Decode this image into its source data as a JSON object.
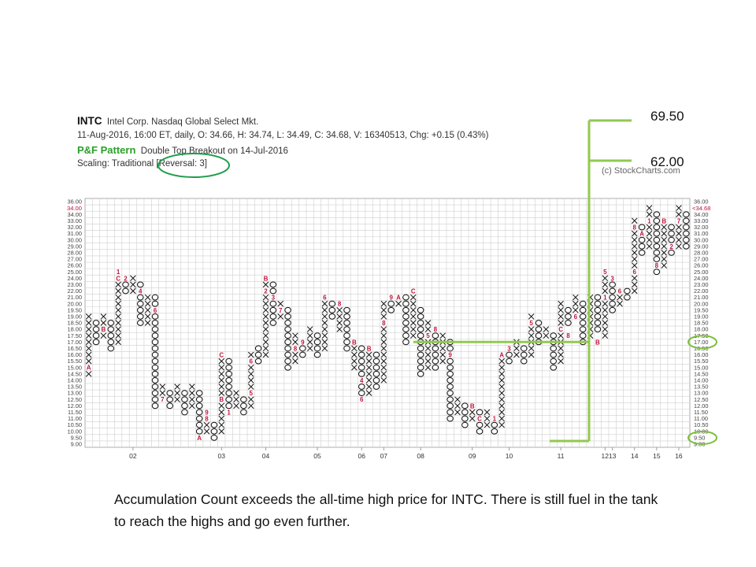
{
  "header": {
    "symbol": "INTC",
    "company": "Intel Corp.  Nasdaq Global Select Mkt.",
    "quote": "11-Aug-2016, 16:00 ET, daily, O: 34.66, H: 34.74, L: 34.49, C: 34.68, V: 16340513, Chg: +0.15 (0.43%)",
    "pattern_label": "P&F Pattern",
    "pattern_text": "Double Top Breakout on 14-Jul-2016",
    "scaling_prefix": "Scaling: Traditional ",
    "scaling_highlight": "[Reversal: 3]",
    "copyright": "(c) StockCharts.com"
  },
  "targets": {
    "upper": "69.50",
    "lower": "62.00"
  },
  "caption": "Accumulation Count exceeds the all-time high price for INTC. There is still fuel in the tank to reach the highs and go even further.",
  "colors": {
    "annotation_green": "#92c94f",
    "circle_green": "#1e9e4a",
    "x_color": "#111111",
    "o_color": "#111111",
    "month_marker": "#c0143c",
    "grid": "#cfcfcf"
  },
  "chart_data": {
    "type": "point-and-figure",
    "symbol": "INTC",
    "box_levels": [
      36.0,
      35.0,
      34.0,
      33.0,
      32.0,
      31.0,
      30.0,
      29.0,
      28.0,
      27.0,
      26.0,
      25.0,
      24.0,
      23.0,
      22.0,
      21.0,
      20.0,
      19.5,
      19.0,
      18.5,
      18.0,
      17.5,
      17.0,
      16.5,
      16.0,
      15.5,
      15.0,
      14.5,
      14.0,
      13.5,
      13.0,
      12.5,
      12.0,
      11.5,
      11.0,
      10.5,
      10.0,
      9.5,
      9.0
    ],
    "y_tick_labels": [
      "36.00",
      "35.00",
      "34.00",
      "33.00",
      "32.00",
      "31.00",
      "30.00",
      "29.00",
      "28.00",
      "27.00",
      "26.00",
      "25.00",
      "24.00",
      "23.00",
      "22.00",
      "21.00",
      "20.00",
      "19.50",
      "19.00",
      "18.50",
      "18.00",
      "17.50",
      "17.00",
      "16.50",
      "16.00",
      "15.50",
      "15.00",
      "14.50",
      "14.00",
      "13.50",
      "13.00",
      "12.50",
      "12.00",
      "11.50",
      "11.00",
      "10.50",
      "10.00",
      "9.50",
      "9.00"
    ],
    "x_tick_labels": [
      {
        "label": "02",
        "col": 6
      },
      {
        "label": "03",
        "col": 18
      },
      {
        "label": "04",
        "col": 24
      },
      {
        "label": "05",
        "col": 31
      },
      {
        "label": "06",
        "col": 37
      },
      {
        "label": "07",
        "col": 40
      },
      {
        "label": "08",
        "col": 45
      },
      {
        "label": "09",
        "col": 52
      },
      {
        "label": "10",
        "col": 57
      },
      {
        "label": "11",
        "col": 64
      },
      {
        "label": "12",
        "col": 70
      },
      {
        "label": "13",
        "col": 71
      },
      {
        "label": "14",
        "col": 74
      },
      {
        "label": "15",
        "col": 77
      },
      {
        "label": "16",
        "col": 80
      }
    ],
    "current_price": 34.68,
    "current_price_label": "<34.68",
    "current_price_left_label": "34.00",
    "circled_levels": [
      17.0,
      9.5
    ],
    "circled_labels": [
      "17.00",
      "9.50"
    ],
    "accumulation_row": 17.0,
    "columns": [
      {
        "t": "X",
        "lo": 14.5,
        "hi": 19.0
      },
      {
        "t": "O",
        "lo": 17.0,
        "hi": 18.5
      },
      {
        "t": "X",
        "lo": 17.5,
        "hi": 19.0
      },
      {
        "t": "O",
        "lo": 16.5,
        "hi": 18.5
      },
      {
        "t": "X",
        "lo": 17.0,
        "hi": 25.0
      },
      {
        "t": "O",
        "lo": 22.0,
        "hi": 24.0
      },
      {
        "t": "X",
        "lo": 22.0,
        "hi": 24.0
      },
      {
        "t": "O",
        "lo": 18.5,
        "hi": 23.0
      },
      {
        "t": "X",
        "lo": 18.5,
        "hi": 21.0
      },
      {
        "t": "O",
        "lo": 12.0,
        "hi": 21.0
      },
      {
        "t": "X",
        "lo": 12.5,
        "hi": 13.5
      },
      {
        "t": "O",
        "lo": 12.0,
        "hi": 13.0
      },
      {
        "t": "X",
        "lo": 12.5,
        "hi": 13.5
      },
      {
        "t": "O",
        "lo": 11.5,
        "hi": 13.0
      },
      {
        "t": "X",
        "lo": 12.0,
        "hi": 13.5
      },
      {
        "t": "O",
        "lo": 9.5,
        "hi": 13.0
      },
      {
        "t": "X",
        "lo": 10.0,
        "hi": 11.0
      },
      {
        "t": "O",
        "lo": 9.5,
        "hi": 10.5
      },
      {
        "t": "X",
        "lo": 10.0,
        "hi": 16.0
      },
      {
        "t": "O",
        "lo": 11.5,
        "hi": 15.5
      },
      {
        "t": "X",
        "lo": 12.0,
        "hi": 13.0
      },
      {
        "t": "O",
        "lo": 11.5,
        "hi": 12.5
      },
      {
        "t": "X",
        "lo": 12.0,
        "hi": 16.0
      },
      {
        "t": "O",
        "lo": 15.5,
        "hi": 16.5
      },
      {
        "t": "X",
        "lo": 16.0,
        "hi": 24.0
      },
      {
        "t": "O",
        "lo": 18.5,
        "hi": 23.0
      },
      {
        "t": "X",
        "lo": 19.0,
        "hi": 20.0
      },
      {
        "t": "O",
        "lo": 15.0,
        "hi": 19.5
      },
      {
        "t": "X",
        "lo": 15.5,
        "hi": 17.5
      },
      {
        "t": "O",
        "lo": 16.0,
        "hi": 17.0
      },
      {
        "t": "X",
        "lo": 16.5,
        "hi": 18.0
      },
      {
        "t": "O",
        "lo": 16.0,
        "hi": 17.5
      },
      {
        "t": "X",
        "lo": 16.5,
        "hi": 21.0
      },
      {
        "t": "O",
        "lo": 19.0,
        "hi": 20.0
      },
      {
        "t": "X",
        "lo": 18.0,
        "hi": 20.0
      },
      {
        "t": "O",
        "lo": 16.5,
        "hi": 19.5
      },
      {
        "t": "X",
        "lo": 15.0,
        "hi": 17.0
      },
      {
        "t": "O",
        "lo": 12.5,
        "hi": 16.5
      },
      {
        "t": "X",
        "lo": 13.0,
        "hi": 16.5
      },
      {
        "t": "O",
        "lo": 13.5,
        "hi": 16.0
      },
      {
        "t": "X",
        "lo": 14.0,
        "hi": 20.0
      },
      {
        "t": "O",
        "lo": 19.5,
        "hi": 21.0
      },
      {
        "t": "X",
        "lo": 20.0,
        "hi": 21.0
      },
      {
        "t": "O",
        "lo": 17.0,
        "hi": 20.5
      },
      {
        "t": "X",
        "lo": 17.5,
        "hi": 22.0
      },
      {
        "t": "O",
        "lo": 14.5,
        "hi": 19.5
      },
      {
        "t": "X",
        "lo": 15.0,
        "hi": 18.5
      },
      {
        "t": "O",
        "lo": 15.0,
        "hi": 18.0
      },
      {
        "t": "X",
        "lo": 15.5,
        "hi": 17.5
      },
      {
        "t": "O",
        "lo": 11.0,
        "hi": 17.0
      },
      {
        "t": "X",
        "lo": 11.5,
        "hi": 12.5
      },
      {
        "t": "O",
        "lo": 10.5,
        "hi": 12.0
      },
      {
        "t": "X",
        "lo": 11.0,
        "hi": 12.0
      },
      {
        "t": "O",
        "lo": 10.0,
        "hi": 11.5
      },
      {
        "t": "X",
        "lo": 10.5,
        "hi": 11.5
      },
      {
        "t": "O",
        "lo": 10.0,
        "hi": 11.0
      },
      {
        "t": "X",
        "lo": 10.5,
        "hi": 16.0
      },
      {
        "t": "O",
        "lo": 15.5,
        "hi": 16.5
      },
      {
        "t": "X",
        "lo": 16.0,
        "hi": 17.0
      },
      {
        "t": "O",
        "lo": 15.5,
        "hi": 16.5
      },
      {
        "t": "X",
        "lo": 16.0,
        "hi": 19.0
      },
      {
        "t": "O",
        "lo": 17.0,
        "hi": 18.5
      },
      {
        "t": "X",
        "lo": 17.5,
        "hi": 18.0
      },
      {
        "t": "O",
        "lo": 15.0,
        "hi": 17.5
      },
      {
        "t": "X",
        "lo": 15.5,
        "hi": 20.0
      },
      {
        "t": "O",
        "lo": 18.5,
        "hi": 19.5
      },
      {
        "t": "X",
        "lo": 19.0,
        "hi": 20.5
      },
      {
        "t": "O",
        "lo": 17.0,
        "hi": 20.0
      },
      {
        "t": "X",
        "lo": 17.5,
        "hi": 21.0
      },
      {
        "t": "O",
        "lo": 18.0,
        "hi": 20.5
      },
      {
        "t": "X",
        "lo": 17.5,
        "hi": 25.0
      },
      {
        "t": "O",
        "lo": 19.5,
        "hi": 24.0
      },
      {
        "t": "X",
        "lo": 20.0,
        "hi": 22.0
      },
      {
        "t": "O",
        "lo": 21.0,
        "hi": 21.5
      },
      {
        "t": "X",
        "lo": 21.5,
        "hi": 33.0
      },
      {
        "t": "O",
        "lo": 28.0,
        "hi": 32.0
      },
      {
        "t": "X",
        "lo": 28.5,
        "hi": 35.0
      },
      {
        "t": "O",
        "lo": 25.0,
        "hi": 34.0
      },
      {
        "t": "X",
        "lo": 26.0,
        "hi": 33.0
      },
      {
        "t": "O",
        "lo": 28.0,
        "hi": 32.0
      },
      {
        "t": "X",
        "lo": 28.5,
        "hi": 35.0
      },
      {
        "t": "O",
        "lo": 29.0,
        "hi": 34.0
      }
    ],
    "month_markers": [
      {
        "col": 0,
        "v": 15.0,
        "m": "A"
      },
      {
        "col": 2,
        "v": 18.0,
        "m": "B"
      },
      {
        "col": 4,
        "v": 25.0,
        "m": "1"
      },
      {
        "col": 4,
        "v": 24.0,
        "m": "C"
      },
      {
        "col": 5,
        "v": 24.0,
        "m": "2"
      },
      {
        "col": 7,
        "v": 22.0,
        "m": "4"
      },
      {
        "col": 9,
        "v": 19.5,
        "m": "6"
      },
      {
        "col": 10,
        "v": 12.5,
        "m": "7"
      },
      {
        "col": 16,
        "v": 11.0,
        "m": "8"
      },
      {
        "col": 16,
        "v": 11.5,
        "m": "9"
      },
      {
        "col": 15,
        "v": 9.5,
        "m": "A"
      },
      {
        "col": 18,
        "v": 16.0,
        "m": "C"
      },
      {
        "col": 18,
        "v": 12.5,
        "m": "B"
      },
      {
        "col": 19,
        "v": 11.5,
        "m": "1"
      },
      {
        "col": 22,
        "v": 13.0,
        "m": "5"
      },
      {
        "col": 22,
        "v": 15.5,
        "m": "6"
      },
      {
        "col": 24,
        "v": 24.0,
        "m": "B"
      },
      {
        "col": 24,
        "v": 22.0,
        "m": "2"
      },
      {
        "col": 25,
        "v": 21.0,
        "m": "3"
      },
      {
        "col": 26,
        "v": 19.5,
        "m": "7"
      },
      {
        "col": 29,
        "v": 17.0,
        "m": "9"
      },
      {
        "col": 28,
        "v": 16.5,
        "m": "8"
      },
      {
        "col": 32,
        "v": 21.0,
        "m": "6"
      },
      {
        "col": 34,
        "v": 20.0,
        "m": "8"
      },
      {
        "col": 36,
        "v": 17.0,
        "m": "B"
      },
      {
        "col": 37,
        "v": 14.0,
        "m": "4"
      },
      {
        "col": 37,
        "v": 12.5,
        "m": "6"
      },
      {
        "col": 38,
        "v": 16.5,
        "m": "B"
      },
      {
        "col": 40,
        "v": 18.5,
        "m": "8"
      },
      {
        "col": 41,
        "v": 21.0,
        "m": "9"
      },
      {
        "col": 42,
        "v": 21.0,
        "m": "A"
      },
      {
        "col": 44,
        "v": 22.0,
        "m": "C"
      },
      {
        "col": 46,
        "v": 17.5,
        "m": "5"
      },
      {
        "col": 47,
        "v": 18.0,
        "m": "8"
      },
      {
        "col": 49,
        "v": 16.0,
        "m": "9"
      },
      {
        "col": 52,
        "v": 12.0,
        "m": "B"
      },
      {
        "col": 53,
        "v": 11.0,
        "m": "C"
      },
      {
        "col": 55,
        "v": 11.0,
        "m": "1"
      },
      {
        "col": 56,
        "v": 16.0,
        "m": "A"
      },
      {
        "col": 57,
        "v": 16.5,
        "m": "3"
      },
      {
        "col": 60,
        "v": 18.5,
        "m": "5"
      },
      {
        "col": 64,
        "v": 18.0,
        "m": "C"
      },
      {
        "col": 65,
        "v": 17.5,
        "m": "8"
      },
      {
        "col": 66,
        "v": 19.0,
        "m": "6"
      },
      {
        "col": 69,
        "v": 17.0,
        "m": "B"
      },
      {
        "col": 70,
        "v": 25.0,
        "m": "5"
      },
      {
        "col": 70,
        "v": 21.0,
        "m": "1"
      },
      {
        "col": 71,
        "v": 24.0,
        "m": "3"
      },
      {
        "col": 72,
        "v": 22.0,
        "m": "6"
      },
      {
        "col": 74,
        "v": 32.0,
        "m": "8"
      },
      {
        "col": 74,
        "v": 25.0,
        "m": "6"
      },
      {
        "col": 75,
        "v": 31.0,
        "m": "A"
      },
      {
        "col": 76,
        "v": 33.0,
        "m": "1"
      },
      {
        "col": 77,
        "v": 26.0,
        "m": "8"
      },
      {
        "col": 78,
        "v": 33.0,
        "m": "B"
      },
      {
        "col": 80,
        "v": 33.0,
        "m": "7"
      },
      {
        "col": 79,
        "v": 29.0,
        "m": "2"
      }
    ]
  }
}
